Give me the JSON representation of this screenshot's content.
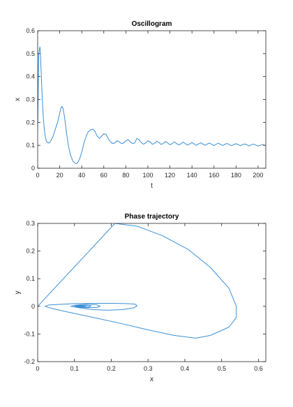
{
  "colors": {
    "series": "#3a8fd6",
    "axes": "#262626",
    "background": "#ffffff"
  },
  "chart_data": [
    {
      "type": "line",
      "title": "Oscillogram",
      "xlabel": "t",
      "ylabel": "x",
      "xlim": [
        0,
        207
      ],
      "ylim": [
        0,
        0.6
      ],
      "xticks": [
        0,
        20,
        40,
        60,
        80,
        100,
        120,
        140,
        160,
        180,
        200
      ],
      "yticks": [
        0,
        0.1,
        0.2,
        0.3,
        0.4,
        0.5,
        0.6
      ],
      "grid": false,
      "series": [
        {
          "x": [
            0,
            1,
            2,
            2.5,
            3,
            4,
            5,
            6,
            7,
            8,
            9,
            10,
            11,
            12,
            14,
            16,
            18,
            20,
            21,
            22,
            23,
            24,
            25,
            26,
            28,
            30,
            32,
            34,
            35,
            36,
            38,
            40,
            42,
            44,
            46,
            48,
            50,
            51,
            52,
            54,
            56,
            58,
            60,
            62,
            64,
            66,
            68,
            70,
            72,
            74,
            76,
            78,
            80,
            82,
            84,
            86,
            88,
            90,
            92,
            94,
            96,
            98,
            100,
            102,
            104,
            106,
            108,
            110,
            112,
            114,
            116,
            118,
            120,
            122,
            124,
            126,
            128,
            130,
            132,
            134,
            136,
            138,
            140,
            142,
            144,
            146,
            148,
            150,
            152,
            154,
            156,
            158,
            160,
            162,
            164,
            166,
            168,
            170,
            172,
            174,
            176,
            178,
            180,
            182,
            184,
            186,
            188,
            190,
            192,
            194,
            196,
            198,
            200,
            202,
            204,
            206,
            207
          ],
          "y": [
            0.17,
            0.5,
            0.53,
            0.5,
            0.44,
            0.32,
            0.23,
            0.17,
            0.135,
            0.118,
            0.112,
            0.11,
            0.113,
            0.12,
            0.14,
            0.17,
            0.2,
            0.24,
            0.262,
            0.27,
            0.26,
            0.235,
            0.2,
            0.16,
            0.095,
            0.055,
            0.03,
            0.022,
            0.02,
            0.023,
            0.04,
            0.07,
            0.11,
            0.14,
            0.16,
            0.168,
            0.17,
            0.168,
            0.16,
            0.14,
            0.13,
            0.14,
            0.15,
            0.148,
            0.13,
            0.115,
            0.108,
            0.11,
            0.12,
            0.115,
            0.108,
            0.11,
            0.12,
            0.125,
            0.115,
            0.108,
            0.11,
            0.13,
            0.125,
            0.112,
            0.105,
            0.11,
            0.12,
            0.115,
            0.105,
            0.108,
            0.118,
            0.113,
            0.104,
            0.108,
            0.117,
            0.11,
            0.103,
            0.107,
            0.115,
            0.108,
            0.102,
            0.107,
            0.114,
            0.107,
            0.101,
            0.106,
            0.112,
            0.106,
            0.1,
            0.106,
            0.111,
            0.105,
            0.1,
            0.106,
            0.11,
            0.104,
            0.099,
            0.105,
            0.109,
            0.104,
            0.099,
            0.105,
            0.108,
            0.103,
            0.098,
            0.104,
            0.107,
            0.103,
            0.098,
            0.104,
            0.106,
            0.102,
            0.097,
            0.103,
            0.105,
            0.101,
            0.097,
            0.1,
            0.104,
            0.1,
            0.1
          ]
        }
      ]
    },
    {
      "type": "line",
      "title": "Phase trajectory",
      "xlabel": "x",
      "ylabel": "y",
      "xlim": [
        0,
        0.62
      ],
      "ylim": [
        -0.2,
        0.3
      ],
      "xticks": [
        0,
        0.1,
        0.2,
        0.3,
        0.4,
        0.5,
        0.6
      ],
      "yticks": [
        -0.2,
        -0.1,
        0,
        0.1,
        0.2,
        0.3
      ],
      "grid": false,
      "series": [
        {
          "x": [
            0,
            0.21,
            0.27,
            0.34,
            0.41,
            0.47,
            0.52,
            0.54,
            0.54,
            0.52,
            0.47,
            0.43,
            0.37,
            0.3,
            0.22,
            0.15,
            0.08,
            0.04,
            0.02,
            0.03,
            0.06,
            0.1,
            0.15,
            0.2,
            0.24,
            0.265,
            0.27,
            0.26,
            0.23,
            0.19,
            0.15,
            0.12,
            0.1,
            0.09,
            0.1,
            0.13,
            0.16,
            0.17,
            0.16,
            0.13,
            0.11,
            0.1,
            0.11,
            0.13,
            0.145,
            0.14,
            0.12,
            0.105,
            0.11,
            0.12,
            0.13,
            0.125,
            0.11,
            0.108,
            0.115
          ],
          "y": [
            0,
            0.3,
            0.29,
            0.255,
            0.205,
            0.14,
            0.065,
            0.0,
            -0.04,
            -0.075,
            -0.105,
            -0.115,
            -0.105,
            -0.085,
            -0.06,
            -0.04,
            -0.02,
            -0.008,
            0.0,
            0.005,
            0.007,
            0.01,
            0.011,
            0.011,
            0.01,
            0.008,
            0.002,
            -0.006,
            -0.012,
            -0.014,
            -0.012,
            -0.007,
            -0.002,
            0.0,
            0.004,
            0.007,
            0.006,
            0.0,
            -0.004,
            -0.005,
            -0.003,
            0.0,
            0.003,
            0.004,
            0.002,
            -0.002,
            -0.002,
            0.0,
            0.001,
            0.001,
            0.0,
            -0.001,
            -0.001,
            0.0,
            0.0
          ]
        }
      ]
    }
  ]
}
